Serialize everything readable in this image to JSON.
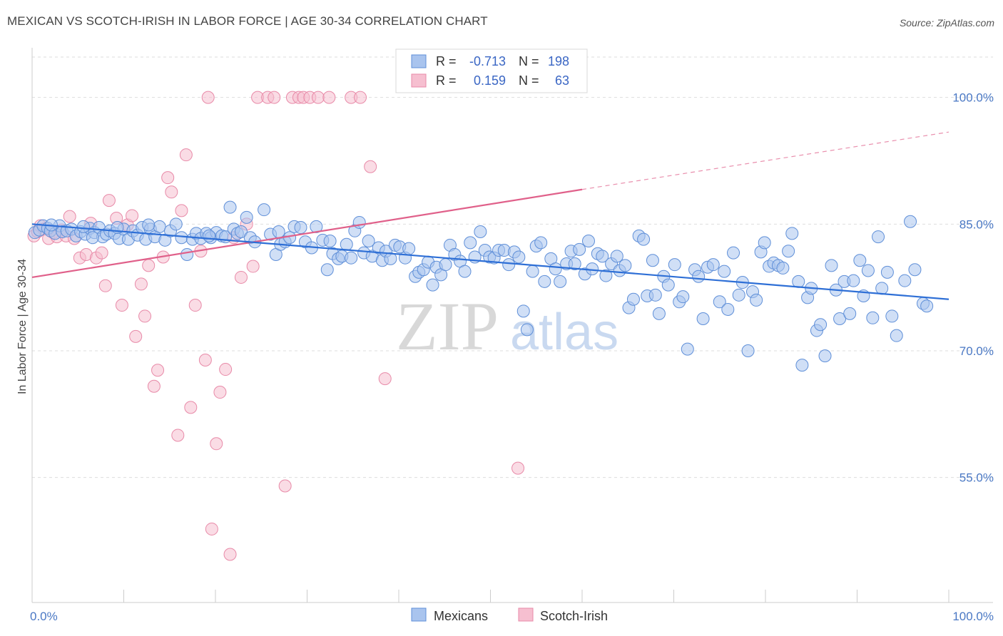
{
  "title": "MEXICAN VS SCOTCH-IRISH IN LABOR FORCE | AGE 30-34 CORRELATION CHART",
  "source": "Source: ZipAtlas.com",
  "watermark": {
    "zip": "ZIP",
    "atlas": "atlas"
  },
  "colors": {
    "mexican_fill": "#a9c4ee",
    "mexican_stroke": "#5f8fd8",
    "mexican_line": "#2e6fd6",
    "scotch_fill": "#f6bfd0",
    "scotch_stroke": "#e88aa8",
    "scotch_line": "#e0608a",
    "tick_text": "#4a78c4",
    "grid": "#dddddd"
  },
  "legend": {
    "rows": [
      {
        "r_label": "R =",
        "r_value": "-0.713",
        "n_label": "N =",
        "n_value": "198"
      },
      {
        "r_label": "R =",
        "r_value": "0.159",
        "n_label": "N =",
        "n_value": "63"
      }
    ]
  },
  "bottom_legend": [
    "Mexicans",
    "Scotch-Irish"
  ],
  "chart_data": {
    "type": "scatter",
    "xlabel": "",
    "ylabel": "In Labor Force | Age 30-34",
    "x_tick_labels": [
      "0.0%",
      "100.0%"
    ],
    "y_tick_labels": [
      "100.0%",
      "85.0%",
      "70.0%",
      "55.0%"
    ],
    "y_ticks": [
      100,
      85,
      70,
      55
    ],
    "xlim": [
      0,
      100
    ],
    "ylim": [
      40.2,
      106.3
    ],
    "grid": true,
    "legend_position": "top-center",
    "series": [
      {
        "name": "Mexicans",
        "r": -0.713,
        "n": 198,
        "trend": {
          "x0": 0,
          "y0": 85.0,
          "x1": 100,
          "y1": 76.1
        },
        "points": [
          [
            0.3,
            84.0
          ],
          [
            0.8,
            84.3
          ],
          [
            1.2,
            84.8
          ],
          [
            1.7,
            84.5
          ],
          [
            2.0,
            84.2
          ],
          [
            2.5,
            83.9
          ],
          [
            3.0,
            84.8
          ],
          [
            3.3,
            84.1
          ],
          [
            3.8,
            84.2
          ],
          [
            4.3,
            84.4
          ],
          [
            4.8,
            83.6
          ],
          [
            5.3,
            84.1
          ],
          [
            5.8,
            83.8
          ],
          [
            6.3,
            84.5
          ],
          [
            6.8,
            84.0
          ],
          [
            7.3,
            84.6
          ],
          [
            7.7,
            83.5
          ],
          [
            8.1,
            83.8
          ],
          [
            8.5,
            84.2
          ],
          [
            9.0,
            83.9
          ],
          [
            9.5,
            83.3
          ],
          [
            10.0,
            84.4
          ],
          [
            10.5,
            83.2
          ],
          [
            11.0,
            84.2
          ],
          [
            11.5,
            83.7
          ],
          [
            12.0,
            84.6
          ],
          [
            12.4,
            83.2
          ],
          [
            12.9,
            84.4
          ],
          [
            13.4,
            83.5
          ],
          [
            13.9,
            84.7
          ],
          [
            14.5,
            83.1
          ],
          [
            15.1,
            84.2
          ],
          [
            15.7,
            85.0
          ],
          [
            16.3,
            83.4
          ],
          [
            16.9,
            81.4
          ],
          [
            17.5,
            83.2
          ],
          [
            17.9,
            83.9
          ],
          [
            18.4,
            83.3
          ],
          [
            19.0,
            83.9
          ],
          [
            19.5,
            83.4
          ],
          [
            20.1,
            84.0
          ],
          [
            20.7,
            83.6
          ],
          [
            21.1,
            83.5
          ],
          [
            21.6,
            87.0
          ],
          [
            22.0,
            84.4
          ],
          [
            22.4,
            83.9
          ],
          [
            22.8,
            84.1
          ],
          [
            23.4,
            85.8
          ],
          [
            23.8,
            83.4
          ],
          [
            24.3,
            82.9
          ],
          [
            25.3,
            86.7
          ],
          [
            26.0,
            83.8
          ],
          [
            26.6,
            81.4
          ],
          [
            27.1,
            82.6
          ],
          [
            27.6,
            82.9
          ],
          [
            28.1,
            83.4
          ],
          [
            28.6,
            84.7
          ],
          [
            29.3,
            84.6
          ],
          [
            29.8,
            82.9
          ],
          [
            30.5,
            82.2
          ],
          [
            31.0,
            84.7
          ],
          [
            31.7,
            83.1
          ],
          [
            32.2,
            79.6
          ],
          [
            32.8,
            81.5
          ],
          [
            33.4,
            80.9
          ],
          [
            33.8,
            81.2
          ],
          [
            34.3,
            82.6
          ],
          [
            34.8,
            81.0
          ],
          [
            35.2,
            84.2
          ],
          [
            35.7,
            85.2
          ],
          [
            36.2,
            81.6
          ],
          [
            36.7,
            83.0
          ],
          [
            37.1,
            81.2
          ],
          [
            37.8,
            82.2
          ],
          [
            38.2,
            80.7
          ],
          [
            38.6,
            81.8
          ],
          [
            39.1,
            80.9
          ],
          [
            39.6,
            82.5
          ],
          [
            40.1,
            82.3
          ],
          [
            40.7,
            81.0
          ],
          [
            41.1,
            82.1
          ],
          [
            41.8,
            78.8
          ],
          [
            42.2,
            79.3
          ],
          [
            42.7,
            79.6
          ],
          [
            43.2,
            80.5
          ],
          [
            43.7,
            77.8
          ],
          [
            44.1,
            79.9
          ],
          [
            44.6,
            79.0
          ],
          [
            45.1,
            80.2
          ],
          [
            45.6,
            82.5
          ],
          [
            46.1,
            81.4
          ],
          [
            46.7,
            80.6
          ],
          [
            47.2,
            79.4
          ],
          [
            47.8,
            82.8
          ],
          [
            48.3,
            81.1
          ],
          [
            48.9,
            84.1
          ],
          [
            49.4,
            81.9
          ],
          [
            49.9,
            81.1
          ],
          [
            50.4,
            81.0
          ],
          [
            50.9,
            81.9
          ],
          [
            51.5,
            81.9
          ],
          [
            52.0,
            80.2
          ],
          [
            52.6,
            81.7
          ],
          [
            53.1,
            81.1
          ],
          [
            53.6,
            74.7
          ],
          [
            54.0,
            72.5
          ],
          [
            54.6,
            79.4
          ],
          [
            55.0,
            82.4
          ],
          [
            55.5,
            82.8
          ],
          [
            55.9,
            78.2
          ],
          [
            56.6,
            80.9
          ],
          [
            57.1,
            79.7
          ],
          [
            57.6,
            78.2
          ],
          [
            58.3,
            80.3
          ],
          [
            58.8,
            81.8
          ],
          [
            59.2,
            80.3
          ],
          [
            59.7,
            82.0
          ],
          [
            60.3,
            79.1
          ],
          [
            60.7,
            83.0
          ],
          [
            61.1,
            79.7
          ],
          [
            61.7,
            81.5
          ],
          [
            62.2,
            81.2
          ],
          [
            62.6,
            78.9
          ],
          [
            63.2,
            80.3
          ],
          [
            63.8,
            81.2
          ],
          [
            64.1,
            79.5
          ],
          [
            64.7,
            80.1
          ],
          [
            65.1,
            75.1
          ],
          [
            65.6,
            76.1
          ],
          [
            66.2,
            83.6
          ],
          [
            66.7,
            83.2
          ],
          [
            67.1,
            76.5
          ],
          [
            67.7,
            80.7
          ],
          [
            68.0,
            76.6
          ],
          [
            68.4,
            74.4
          ],
          [
            68.9,
            78.8
          ],
          [
            69.4,
            77.8
          ],
          [
            70.1,
            80.2
          ],
          [
            70.6,
            75.8
          ],
          [
            71.0,
            76.4
          ],
          [
            71.5,
            70.2
          ],
          [
            72.3,
            79.6
          ],
          [
            72.7,
            78.8
          ],
          [
            73.2,
            73.8
          ],
          [
            73.7,
            79.9
          ],
          [
            74.3,
            80.2
          ],
          [
            75.0,
            75.8
          ],
          [
            75.5,
            79.4
          ],
          [
            75.9,
            74.9
          ],
          [
            76.5,
            81.6
          ],
          [
            77.1,
            76.6
          ],
          [
            77.5,
            78.1
          ],
          [
            78.1,
            70.0
          ],
          [
            78.6,
            77.0
          ],
          [
            79.0,
            76.0
          ],
          [
            79.5,
            81.7
          ],
          [
            79.9,
            82.8
          ],
          [
            80.4,
            80.0
          ],
          [
            80.9,
            80.4
          ],
          [
            81.4,
            80.1
          ],
          [
            81.9,
            79.8
          ],
          [
            82.5,
            81.8
          ],
          [
            82.9,
            83.9
          ],
          [
            83.6,
            78.2
          ],
          [
            84.0,
            68.3
          ],
          [
            84.6,
            76.3
          ],
          [
            85.0,
            77.4
          ],
          [
            85.6,
            72.4
          ],
          [
            86.0,
            73.1
          ],
          [
            86.5,
            69.4
          ],
          [
            87.2,
            80.1
          ],
          [
            87.7,
            77.2
          ],
          [
            88.1,
            73.8
          ],
          [
            88.6,
            78.2
          ],
          [
            89.2,
            74.4
          ],
          [
            89.6,
            78.3
          ],
          [
            90.3,
            80.7
          ],
          [
            90.7,
            76.5
          ],
          [
            91.2,
            79.5
          ],
          [
            91.7,
            73.9
          ],
          [
            92.3,
            83.5
          ],
          [
            92.7,
            77.4
          ],
          [
            93.3,
            79.3
          ],
          [
            93.8,
            74.1
          ],
          [
            94.3,
            71.8
          ],
          [
            95.2,
            78.3
          ],
          [
            95.8,
            85.3
          ],
          [
            96.3,
            79.6
          ],
          [
            97.2,
            75.6
          ],
          [
            97.6,
            75.3
          ],
          [
            2.1,
            84.9
          ],
          [
            5.6,
            84.7
          ],
          [
            6.6,
            83.4
          ],
          [
            9.3,
            84.6
          ],
          [
            12.7,
            84.9
          ],
          [
            19.3,
            83.6
          ],
          [
            26.9,
            84.1
          ],
          [
            32.5,
            83.0
          ]
        ]
      },
      {
        "name": "Scotch-Irish",
        "r": 0.159,
        "n": 63,
        "trend": {
          "x0": 0,
          "y0": 78.7,
          "x1": 60,
          "y1": 89.1
        },
        "trend_dashed": {
          "x0": 60,
          "y0": 89.1,
          "x1": 100,
          "y1": 95.9
        },
        "points": [
          [
            0.2,
            83.6
          ],
          [
            0.6,
            84.1
          ],
          [
            0.9,
            84.8
          ],
          [
            1.3,
            84.4
          ],
          [
            1.8,
            83.3
          ],
          [
            2.3,
            84.0
          ],
          [
            2.7,
            83.5
          ],
          [
            3.2,
            84.3
          ],
          [
            3.7,
            83.6
          ],
          [
            4.1,
            85.9
          ],
          [
            4.6,
            83.3
          ],
          [
            5.2,
            81.0
          ],
          [
            5.9,
            81.4
          ],
          [
            6.4,
            85.1
          ],
          [
            7.0,
            81.0
          ],
          [
            7.6,
            81.6
          ],
          [
            8.0,
            77.7
          ],
          [
            8.4,
            87.8
          ],
          [
            9.2,
            85.7
          ],
          [
            9.8,
            75.4
          ],
          [
            10.4,
            84.9
          ],
          [
            10.9,
            86.0
          ],
          [
            11.3,
            71.7
          ],
          [
            11.9,
            77.9
          ],
          [
            12.3,
            74.1
          ],
          [
            12.7,
            80.1
          ],
          [
            13.3,
            65.8
          ],
          [
            13.7,
            67.7
          ],
          [
            14.3,
            81.1
          ],
          [
            14.8,
            90.5
          ],
          [
            15.2,
            88.8
          ],
          [
            15.9,
            60.0
          ],
          [
            16.3,
            86.6
          ],
          [
            16.8,
            93.2
          ],
          [
            17.3,
            63.3
          ],
          [
            17.8,
            75.4
          ],
          [
            18.4,
            81.8
          ],
          [
            18.9,
            68.9
          ],
          [
            19.2,
            100.0
          ],
          [
            19.6,
            48.9
          ],
          [
            20.1,
            59.0
          ],
          [
            20.5,
            65.1
          ],
          [
            21.1,
            67.8
          ],
          [
            21.6,
            45.9
          ],
          [
            22.0,
            83.4
          ],
          [
            22.8,
            78.7
          ],
          [
            23.4,
            85.0
          ],
          [
            24.1,
            80.0
          ],
          [
            24.6,
            100.0
          ],
          [
            25.7,
            100.0
          ],
          [
            26.4,
            100.0
          ],
          [
            27.6,
            54.0
          ],
          [
            28.4,
            100.0
          ],
          [
            29.1,
            100.0
          ],
          [
            29.6,
            100.0
          ],
          [
            30.3,
            100.0
          ],
          [
            31.2,
            100.0
          ],
          [
            32.4,
            100.0
          ],
          [
            34.8,
            100.0
          ],
          [
            35.8,
            100.0
          ],
          [
            36.9,
            91.8
          ],
          [
            38.5,
            66.7
          ],
          [
            53.0,
            56.1
          ]
        ]
      }
    ]
  }
}
